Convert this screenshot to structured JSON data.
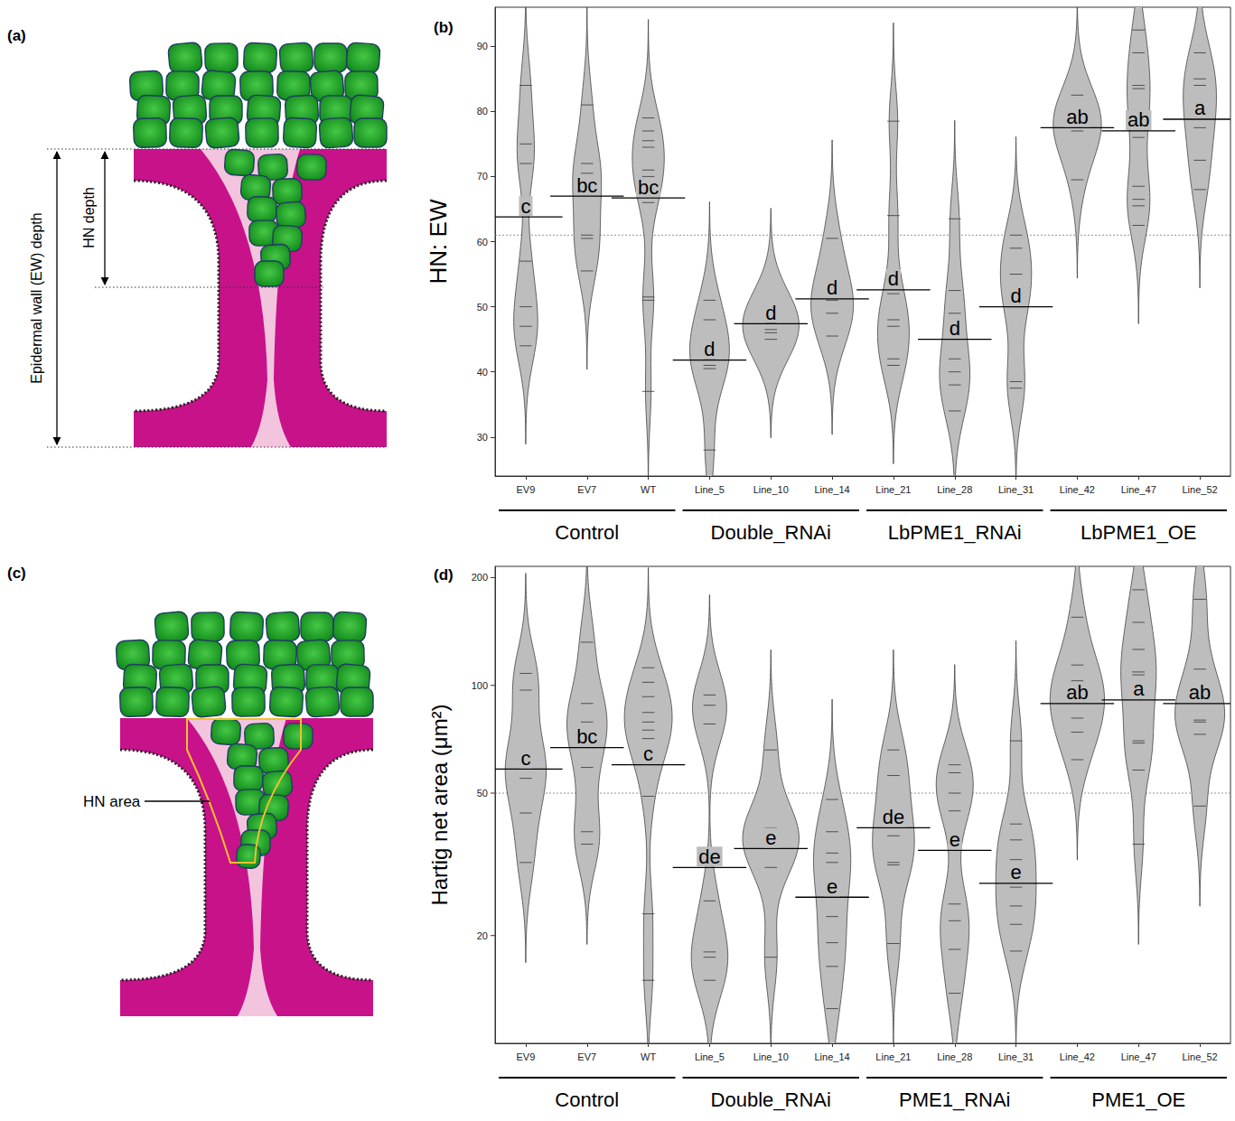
{
  "chart_data": [
    {
      "type": "diagram",
      "panel": "(a)",
      "annotations": [
        "Epidermal wall (EW) depth",
        "HN depth"
      ]
    },
    {
      "type": "violin",
      "panel": "(b)",
      "y_label": "HN: EW",
      "categories": [
        "EV9",
        "EV7",
        "WT",
        "Line_5",
        "Line_10",
        "Line_14",
        "Line_21",
        "Line_28",
        "Line_31",
        "Line_42",
        "Line_47",
        "Line_52"
      ],
      "points": [
        [
          84,
          75,
          72,
          57,
          50,
          47,
          44
        ],
        [
          81,
          72,
          70.5,
          69,
          61,
          60.5,
          55.5
        ],
        [
          79,
          77,
          75.5,
          74.5,
          71,
          70,
          69,
          66,
          51.5,
          51,
          37
        ],
        [
          51,
          48,
          44,
          42,
          41,
          40.5,
          28
        ],
        [
          50,
          48,
          47.5,
          46.5,
          46,
          45
        ],
        [
          60.5,
          53,
          51,
          49,
          45.5
        ],
        [
          78.5,
          64,
          52,
          48,
          47,
          42,
          41
        ],
        [
          63.5,
          52.5,
          49,
          42,
          40,
          38,
          34
        ],
        [
          61,
          59,
          55,
          52,
          50,
          38.5,
          37.5
        ],
        [
          82.5,
          78.5,
          78,
          77.5,
          77,
          69.5
        ],
        [
          92.5,
          89,
          84,
          83.5,
          80,
          76,
          68.5,
          66.5,
          65.5,
          62.5
        ],
        [
          89,
          85,
          84,
          80,
          77.5,
          72.5,
          68
        ]
      ],
      "means": [
        63.8,
        67,
        66.7,
        41.8,
        47.4,
        51.2,
        52.6,
        45,
        50,
        77.5,
        77,
        78.8
      ],
      "letters": [
        "c",
        "bc",
        "bc",
        "d",
        "d",
        "d",
        "d",
        "d",
        "d",
        "ab",
        "ab",
        "a"
      ],
      "groups": [
        {
          "label": "Control",
          "categories": [
            "EV9",
            "EV7",
            "WT"
          ]
        },
        {
          "label": "Double_RNAi",
          "categories": [
            "Line_5",
            "Line_10",
            "Line_14"
          ]
        },
        {
          "label": "LbPME1_RNAi",
          "categories": [
            "Line_21",
            "Line_28",
            "Line_31"
          ]
        },
        {
          "label": "LbPME1_OE",
          "categories": [
            "Line_42",
            "Line_47",
            "Line_52"
          ]
        }
      ],
      "hline": 61,
      "ylim": [
        24,
        96
      ],
      "yticks": [
        30,
        40,
        50,
        60,
        70,
        80,
        90
      ]
    },
    {
      "type": "diagram",
      "panel": "(c)",
      "annotations": [
        "HN area"
      ]
    },
    {
      "type": "violin",
      "panel": "(d)",
      "y_label": "Hartig net area (μm²)",
      "log": "y",
      "categories": [
        "EV9",
        "EV7",
        "WT",
        "Line_5",
        "Line_10",
        "Line_14",
        "Line_21",
        "Line_28",
        "Line_31",
        "Line_42",
        "Line_47",
        "Line_52"
      ],
      "points": [
        [
          108,
          97,
          64,
          61,
          55,
          44,
          32
        ],
        [
          132,
          89,
          79,
          76,
          59,
          39,
          36
        ],
        [
          112,
          102,
          93,
          84,
          79,
          75,
          71,
          67,
          49,
          23,
          15
        ],
        [
          94,
          88,
          78,
          25,
          18,
          17.4,
          15
        ],
        [
          66,
          40,
          39,
          38,
          37,
          31,
          17.4
        ],
        [
          48,
          39,
          34,
          32,
          28,
          22.6,
          19.1,
          16.4,
          12.5
        ],
        [
          66,
          56,
          44,
          38,
          32,
          31.5,
          19
        ],
        [
          60,
          57,
          50,
          44.6,
          24.5,
          22,
          18.3,
          13.8
        ],
        [
          70,
          41,
          37,
          32.6,
          27.3,
          24.2,
          21.5,
          18.1
        ],
        [
          155,
          114,
          103,
          97,
          90,
          81,
          74,
          62
        ],
        [
          185,
          150,
          126,
          109,
          107,
          93,
          70,
          69,
          58,
          36
        ],
        [
          174,
          111,
          93,
          80,
          79,
          73,
          46
        ]
      ],
      "means": [
        58.4,
        67,
        60,
        31,
        35,
        25.6,
        40,
        34.6,
        28,
        89,
        91,
        89
      ],
      "letters": [
        "c",
        "bc",
        "c",
        "de",
        "e",
        "e",
        "de",
        "e",
        "e",
        "ab",
        "a",
        "ab"
      ],
      "groups": [
        {
          "label": "Control",
          "categories": [
            "EV9",
            "EV7",
            "WT"
          ]
        },
        {
          "label": "Double_RNAi",
          "categories": [
            "Line_5",
            "Line_10",
            "Line_14"
          ]
        },
        {
          "label": "PME1_RNAi",
          "categories": [
            "Line_21",
            "Line_28",
            "Line_31"
          ]
        },
        {
          "label": "PME1_OE",
          "categories": [
            "Line_42",
            "Line_47",
            "Line_52"
          ]
        }
      ],
      "hline": 50,
      "ylim": [
        10,
        215
      ],
      "yticks": [
        20,
        50,
        100,
        200
      ]
    }
  ]
}
